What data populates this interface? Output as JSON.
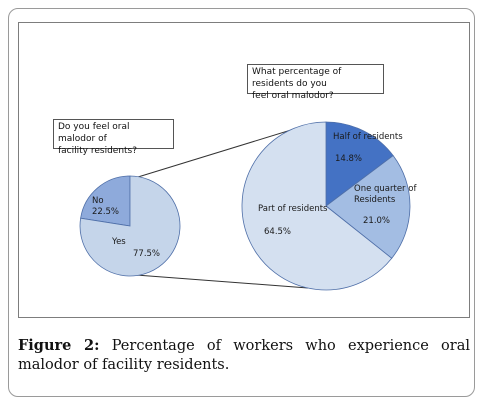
{
  "chart_data": [
    {
      "type": "pie",
      "title": "Do you feel oral malodor of\nfacility residents?",
      "slices": [
        {
          "label": "No",
          "value": 22.5,
          "value_label": "22.5%",
          "color": "#8eaadb"
        },
        {
          "label": "Yes",
          "value": 77.5,
          "value_label": "77.5%",
          "color": "#c5d5ea"
        }
      ]
    },
    {
      "type": "pie",
      "title": "What  percentage of residents do you\nfeel oral malodor?",
      "slices": [
        {
          "label": "Half of residents",
          "value": 14.8,
          "value_label": "14.8%",
          "color": "#4472c4"
        },
        {
          "label": "One quarter of\nResidents",
          "value": 21.0,
          "value_label": "21.0%",
          "color": "#a3bde3"
        },
        {
          "label": "Part of residents",
          "value": 64.5,
          "value_label": "64.5%",
          "color": "#d4e0f0"
        }
      ]
    }
  ],
  "caption": {
    "figure_label": "Figure 2:",
    "text": " Percentage of workers who experience oral malodor of facility residents."
  }
}
